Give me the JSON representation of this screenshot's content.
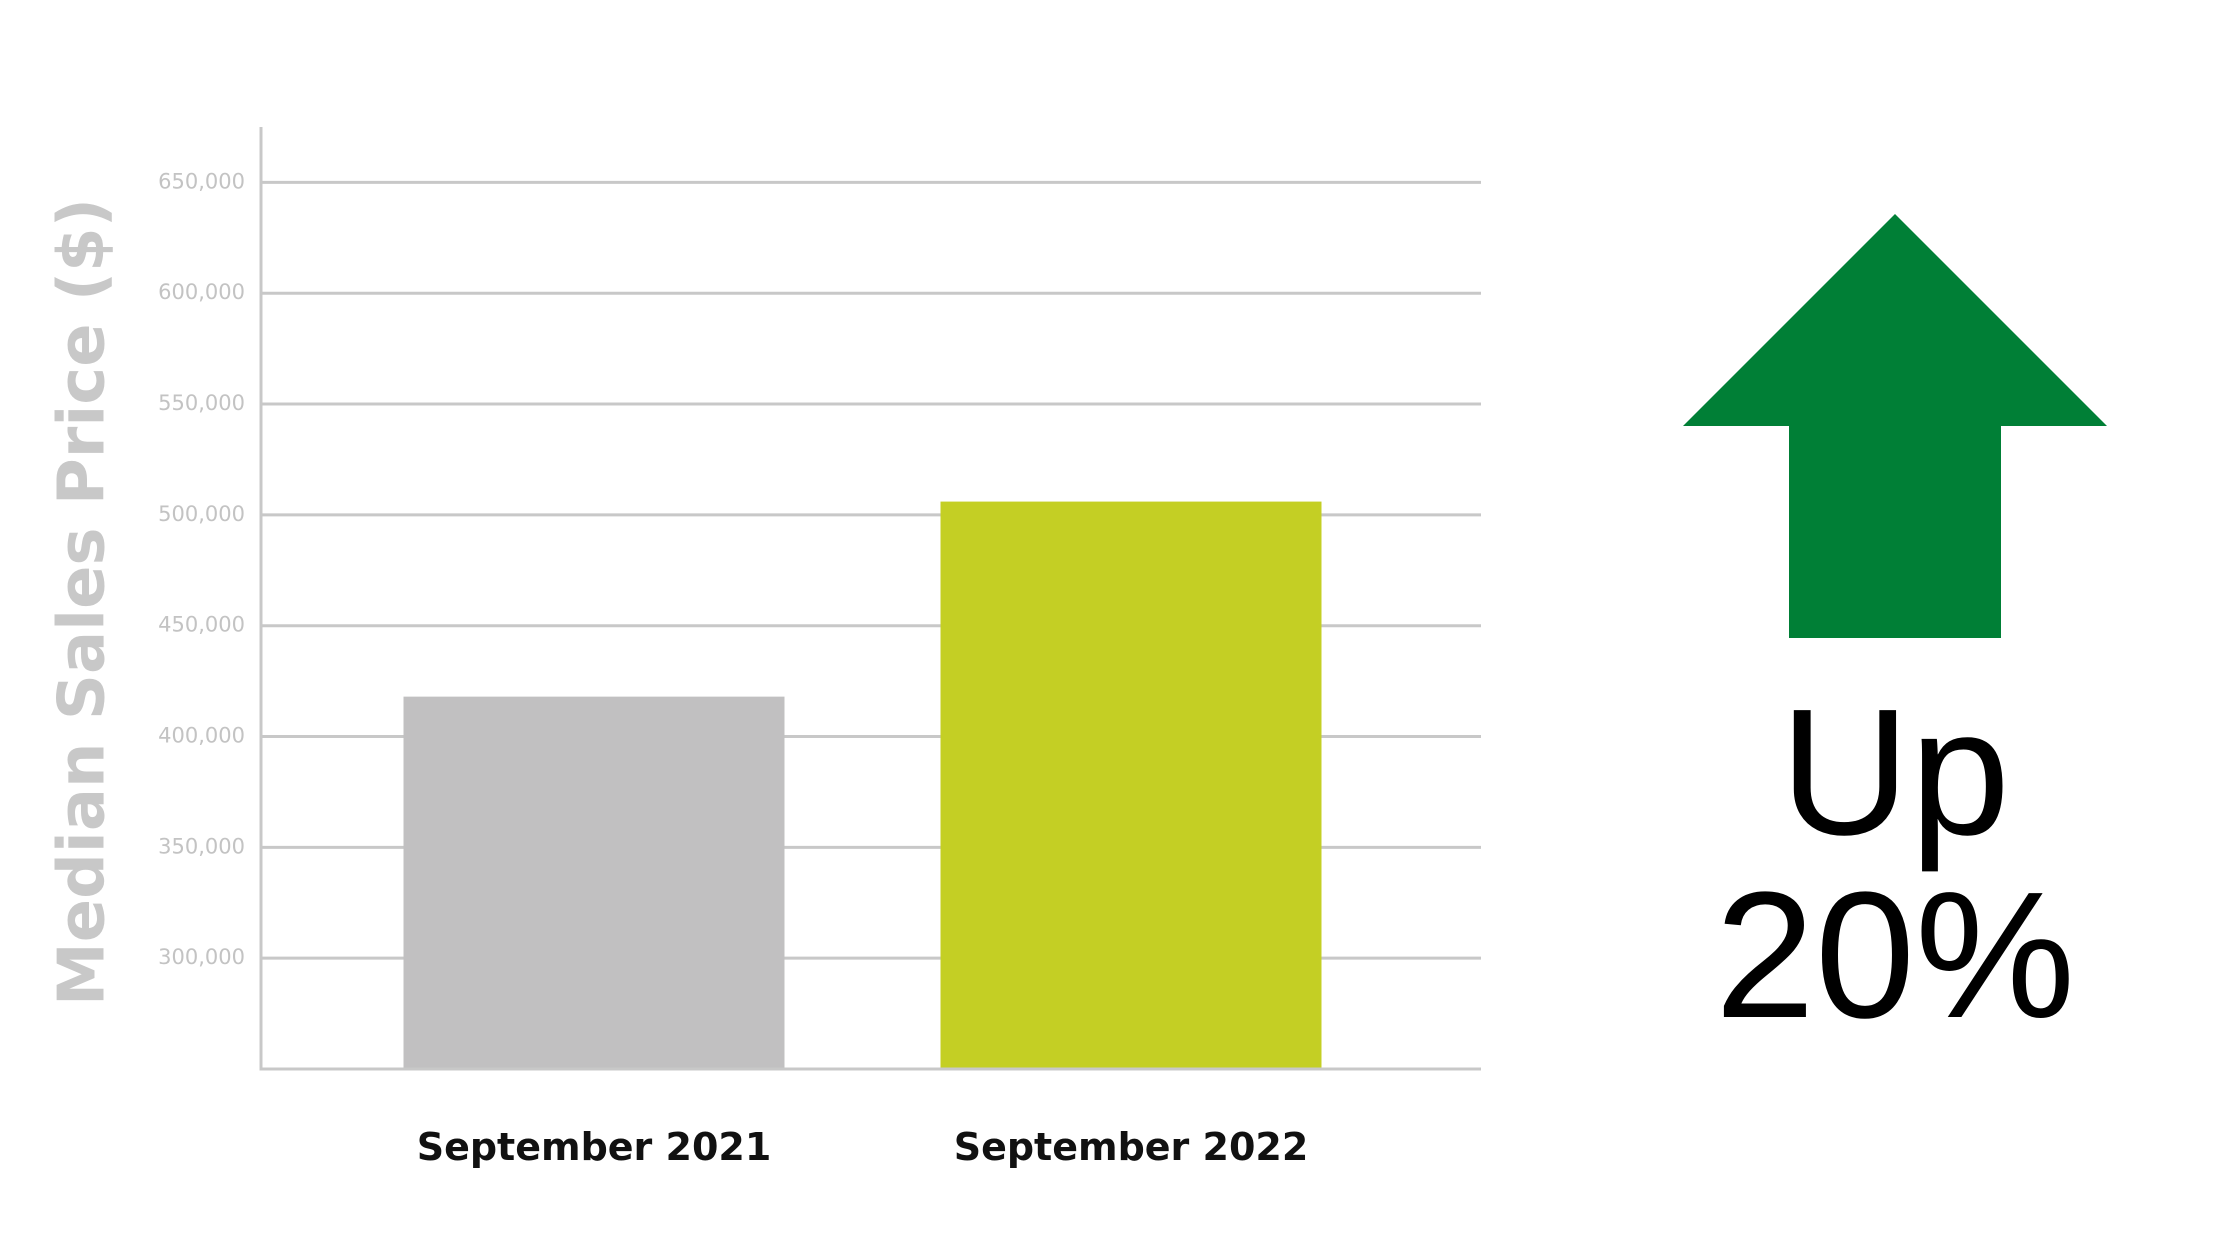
{
  "chart_data": {
    "type": "bar",
    "y_label": "Median Sales Price ($)",
    "categories": [
      "September 2021",
      "September 2022"
    ],
    "values": [
      418000,
      506000
    ],
    "colors": [
      "#c1c0c1",
      "#c4cf24"
    ],
    "ylim": [
      250000,
      675000
    ],
    "yticks": [
      {
        "value": 300000,
        "label": "300,000"
      },
      {
        "value": 350000,
        "label": "350,000"
      },
      {
        "value": 400000,
        "label": "400,000"
      },
      {
        "value": 450000,
        "label": "450,000"
      },
      {
        "value": 500000,
        "label": "500,000"
      },
      {
        "value": 550000,
        "label": "550,000"
      },
      {
        "value": 600000,
        "label": "600,000"
      },
      {
        "value": 650000,
        "label": "650,000"
      }
    ],
    "grid": true,
    "annotation": [
      "Up",
      "20%"
    ]
  }
}
